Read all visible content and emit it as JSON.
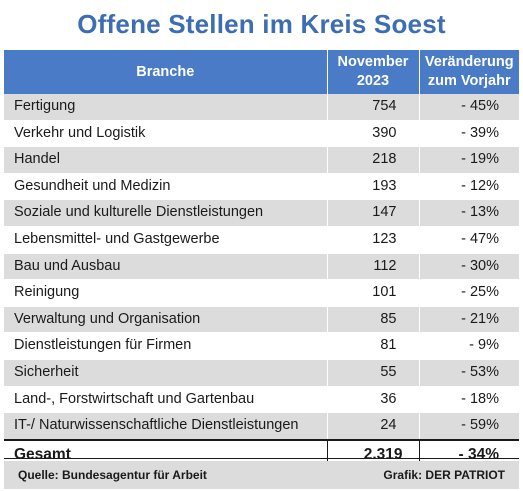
{
  "chart_data": {
    "type": "table",
    "title": "Offene Stellen im Kreis Soest",
    "columns": [
      "Branche",
      "November 2023",
      "Veränderung zum Vorjahr"
    ],
    "header_lines": {
      "branche": "Branche",
      "november_line1": "November",
      "november_line2": "2023",
      "change_line1": "Veränderung",
      "change_line2": "zum Vorjahr"
    },
    "rows": [
      {
        "branche": "Fertigung",
        "value": "754",
        "change": "- 45%"
      },
      {
        "branche": "Verkehr und Logistik",
        "value": "390",
        "change": "- 39%"
      },
      {
        "branche": "Handel",
        "value": "218",
        "change": "- 19%"
      },
      {
        "branche": "Gesundheit und Medizin",
        "value": "193",
        "change": "- 12%"
      },
      {
        "branche": "Soziale und kulturelle Dienstleistungen",
        "value": "147",
        "change": "- 13%"
      },
      {
        "branche": "Lebensmittel- und Gastgewerbe",
        "value": "123",
        "change": "- 47%"
      },
      {
        "branche": "Bau und Ausbau",
        "value": "112",
        "change": "- 30%"
      },
      {
        "branche": "Reinigung",
        "value": "101",
        "change": "- 25%"
      },
      {
        "branche": "Verwaltung und Organisation",
        "value": "85",
        "change": "- 21%"
      },
      {
        "branche": "Dienstleistungen für Firmen",
        "value": "81",
        "change": "- 9%"
      },
      {
        "branche": "Sicherheit",
        "value": "55",
        "change": "- 53%"
      },
      {
        "branche": "Land-, Forstwirtschaft und Gartenbau",
        "value": "36",
        "change": "- 18%"
      },
      {
        "branche": "IT-/ Naturwissenschaftliche Dienstleistungen",
        "value": "24",
        "change": "- 59%"
      }
    ],
    "total": {
      "label": "Gesamt",
      "value": "2.319",
      "change": "- 34%"
    }
  },
  "footer": {
    "source": "Quelle: Bundesagentur für Arbeit",
    "credit": "Grafik: DER PATRIOT"
  },
  "colors": {
    "title": "#3d6db3",
    "header_bg": "#4a7bc6",
    "stripe": "#dcdcdc"
  }
}
